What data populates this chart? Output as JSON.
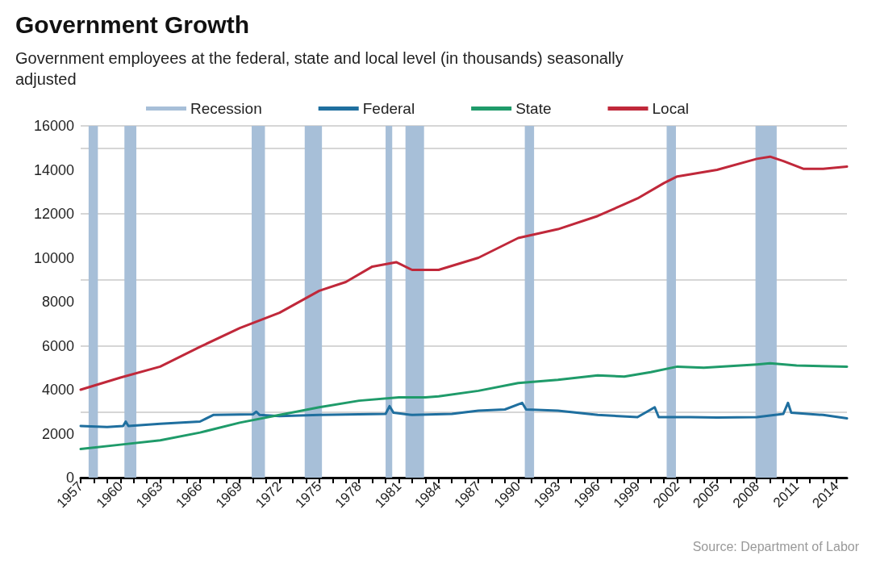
{
  "chart_data": {
    "type": "line",
    "title": "Government Growth",
    "subtitle": "Government employees at the federal, state and local level (in thousands) seasonally adjusted",
    "annotations": [
      "Source: Department of Labor"
    ],
    "legend": "top",
    "grid": "y",
    "marker": "none",
    "line_style": "solid",
    "xlim": [
      1957,
      2014.8
    ],
    "ylim": [
      0,
      16000
    ],
    "yticks": [
      0,
      2000,
      4000,
      6000,
      8000,
      10000,
      12000,
      14000,
      16000
    ],
    "xticks": [
      1957,
      {
        "value": 1958,
        "label": null
      },
      {
        "value": 1959,
        "label": null
      },
      1960,
      {
        "value": 1961,
        "label": null
      },
      {
        "value": 1962,
        "label": null
      },
      1963,
      {
        "value": 1964,
        "label": null
      },
      {
        "value": 1965,
        "label": null
      },
      1966,
      {
        "value": 1967,
        "label": null
      },
      {
        "value": 1968,
        "label": null
      },
      1969,
      {
        "value": 1970,
        "label": null
      },
      {
        "value": 1971,
        "label": null
      },
      1972,
      {
        "value": 1973,
        "label": null
      },
      {
        "value": 1974,
        "label": null
      },
      1975,
      {
        "value": 1976,
        "label": null
      },
      {
        "value": 1977,
        "label": null
      },
      1978,
      {
        "value": 1979,
        "label": null
      },
      {
        "value": 1980,
        "label": null
      },
      1981,
      {
        "value": 1982,
        "label": null
      },
      {
        "value": 1983,
        "label": null
      },
      1984,
      {
        "value": 1985,
        "label": null
      },
      {
        "value": 1986,
        "label": null
      },
      1987,
      {
        "value": 1988,
        "label": null
      },
      {
        "value": 1989,
        "label": null
      },
      1990,
      {
        "value": 1991,
        "label": null
      },
      {
        "value": 1992,
        "label": null
      },
      1993,
      {
        "value": 1994,
        "label": null
      },
      {
        "value": 1995,
        "label": null
      },
      1996,
      {
        "value": 1997,
        "label": null
      },
      {
        "value": 1998,
        "label": null
      },
      1999,
      {
        "value": 2000,
        "label": null
      },
      {
        "value": 2001,
        "label": null
      },
      2002,
      {
        "value": 2003,
        "label": null
      },
      {
        "value": 2004,
        "label": null
      },
      2005,
      {
        "value": 2006,
        "label": null
      },
      {
        "value": 2007,
        "label": null
      },
      2008,
      {
        "value": 2009,
        "label": null
      },
      {
        "value": 2010,
        "label": null
      },
      2011,
      {
        "value": 2012,
        "label": null
      },
      {
        "value": 2013,
        "label": null
      },
      2014
    ],
    "bands": [
      {
        "axis": "x",
        "from": 1957.6,
        "to": 1958.3,
        "label": "Recession",
        "color": "#a7bfd8"
      },
      {
        "axis": "x",
        "from": 1960.3,
        "to": 1961.2,
        "color": "#a7bfd8"
      },
      {
        "axis": "x",
        "from": 1969.9,
        "to": 1970.9,
        "color": "#a7bfd8"
      },
      {
        "axis": "x",
        "from": 1973.9,
        "to": 1975.2,
        "color": "#a7bfd8"
      },
      {
        "axis": "x",
        "from": 1980.0,
        "to": 1980.5,
        "color": "#a7bfd8"
      },
      {
        "axis": "x",
        "from": 1981.5,
        "to": 1982.9,
        "color": "#a7bfd8"
      },
      {
        "axis": "x",
        "from": 1990.5,
        "to": 1991.2,
        "color": "#a7bfd8"
      },
      {
        "axis": "x",
        "from": 2001.2,
        "to": 2001.9,
        "color": "#a7bfd8"
      },
      {
        "axis": "x",
        "from": 2007.9,
        "to": 2009.5,
        "color": "#a7bfd8"
      }
    ],
    "series": [
      {
        "name": "Federal",
        "color": "#1f6f9f",
        "x": [
          1957,
          1959,
          1960.2,
          1960.4,
          1960.6,
          1963,
          1966,
          1967,
          1970,
          1970.25,
          1970.5,
          1972,
          1975,
          1980.0,
          1980.3,
          1980.6,
          1982,
          1985,
          1987,
          1989,
          1990.3,
          1990.6,
          1993,
          1996,
          1999,
          2000.3,
          2000.6,
          2003,
          2005,
          2008,
          2010.0,
          2010.35,
          2010.6,
          2013,
          2014.8
        ],
        "values": [
          2350,
          2300,
          2350,
          2550,
          2350,
          2450,
          2550,
          2850,
          2880,
          3000,
          2850,
          2800,
          2850,
          2900,
          3250,
          2950,
          2850,
          2900,
          3050,
          3100,
          3400,
          3100,
          3050,
          2850,
          2750,
          3200,
          2750,
          2750,
          2730,
          2750,
          2900,
          3400,
          2950,
          2850,
          2700
        ]
      },
      {
        "name": "State",
        "color": "#1f9b6a",
        "x": [
          1957,
          1960,
          1963,
          1966,
          1969,
          1972,
          1975,
          1978,
          1981,
          1983,
          1984,
          1987,
          1990,
          1993,
          1996,
          1998,
          2000,
          2002,
          2004,
          2008,
          2009,
          2011,
          2014.8
        ],
        "values": [
          1300,
          1500,
          1700,
          2050,
          2500,
          2850,
          3200,
          3500,
          3650,
          3650,
          3700,
          3950,
          4300,
          4450,
          4650,
          4600,
          4800,
          5050,
          5000,
          5150,
          5200,
          5100,
          5050
        ]
      },
      {
        "name": "Local",
        "color": "#c0283a",
        "x": [
          1957,
          1960,
          1963,
          1966,
          1969,
          1972,
          1975,
          1977,
          1979,
          1980.8,
          1982,
          1984,
          1987,
          1990,
          1993,
          1996,
          1999,
          2001,
          2002,
          2005,
          2008,
          2009,
          2010,
          2011.5,
          2013,
          2014.8
        ],
        "values": [
          4000,
          4550,
          5050,
          5950,
          6800,
          7500,
          8500,
          8900,
          9600,
          9800,
          9450,
          9450,
          10000,
          10900,
          11300,
          11900,
          12700,
          13400,
          13700,
          14000,
          14500,
          14600,
          14400,
          14050,
          14050,
          14150
        ]
      }
    ]
  }
}
